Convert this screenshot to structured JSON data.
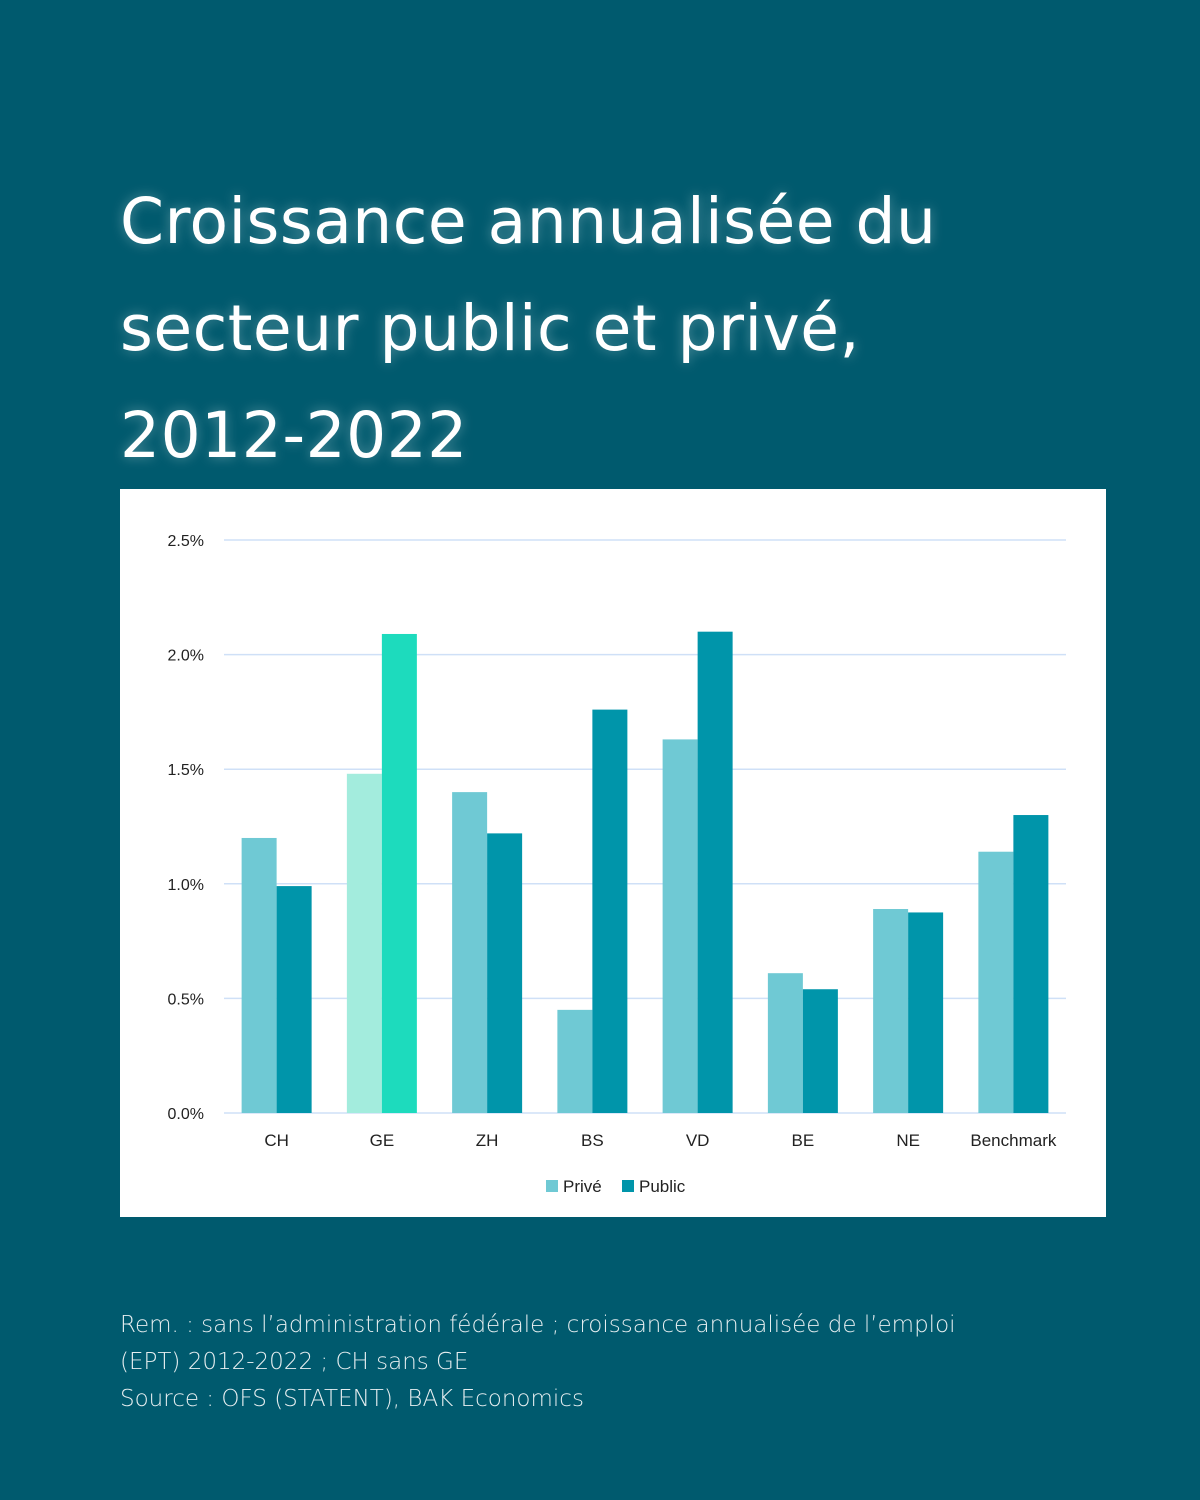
{
  "title_lines": [
    "Croissance annualisée du",
    "secteur public et privé,",
    "2012-2022"
  ],
  "notes": {
    "remark_line1": "Rem. : sans l’administration fédérale ; croissance annualisée de l’emploi",
    "remark_line2": "(EPT) 2012-2022 ; CH sans GE",
    "source": "Source : OFS (STATENT), BAK Economics"
  },
  "colors": {
    "background": "#005a6e",
    "prive": "#6fc9d4",
    "public": "#0095aa",
    "prive_highlight": "#a3ecdd",
    "public_highlight": "#1ddbbd",
    "gridline": "#cfe0f7"
  },
  "chart_data": {
    "type": "bar",
    "title": "Croissance annualisée du secteur public et privé, 2012-2022",
    "xlabel": "",
    "ylabel": "",
    "categories": [
      "CH",
      "GE",
      "ZH",
      "BS",
      "VD",
      "BE",
      "NE",
      "Benchmark"
    ],
    "highlight_category": "GE",
    "series": [
      {
        "name": "Privé",
        "values": [
          1.2,
          1.48,
          1.4,
          0.45,
          1.63,
          0.61,
          0.89,
          1.14
        ]
      },
      {
        "name": "Public",
        "values": [
          0.99,
          2.09,
          1.22,
          1.76,
          2.1,
          0.54,
          0.875,
          1.3
        ]
      }
    ],
    "ylim": [
      0,
      2.5
    ],
    "yticks": [
      0,
      0.5,
      1.0,
      1.5,
      2.0,
      2.5
    ],
    "ytick_labels": [
      "0.0%",
      "0.5%",
      "1.0%",
      "1.5%",
      "2.0%",
      "2.5%"
    ],
    "grid": true,
    "legend": [
      "Privé",
      "Public"
    ],
    "legend_position": "bottom"
  }
}
